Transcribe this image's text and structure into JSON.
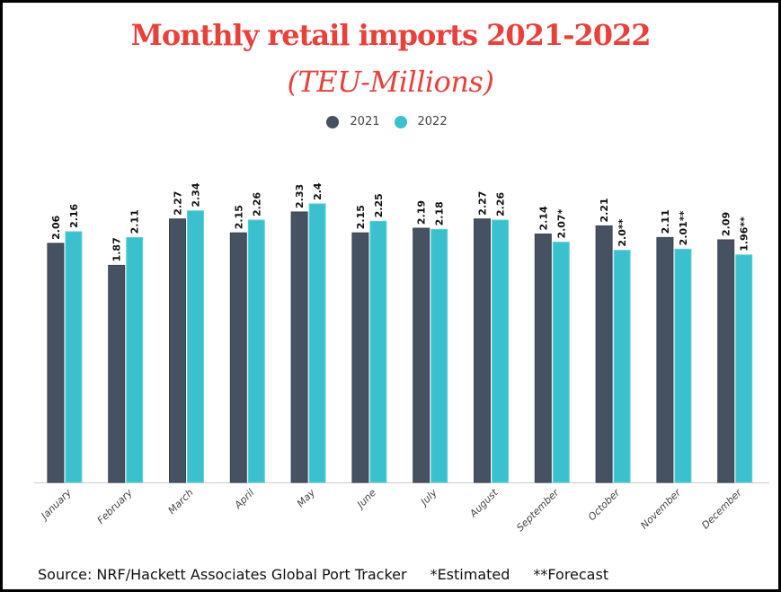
{
  "chart_data": {
    "type": "bar",
    "title": "Monthly retail imports 2021-2022",
    "subtitle": "(TEU-Millions)",
    "categories": [
      "January",
      "February",
      "March",
      "April",
      "May",
      "June",
      "July",
      "August",
      "September",
      "October",
      "November",
      "December"
    ],
    "series": [
      {
        "name": "2021",
        "color": "#465162",
        "values": [
          2.06,
          1.87,
          2.27,
          2.15,
          2.33,
          2.15,
          2.19,
          2.27,
          2.14,
          2.21,
          2.11,
          2.09
        ],
        "labels": [
          "2.06",
          "1.87",
          "2.27",
          "2.15",
          "2.33",
          "2.15",
          "2.19",
          "2.27",
          "2.14",
          "2.21",
          "2.11",
          "2.09"
        ]
      },
      {
        "name": "2022",
        "color": "#3bc1cd",
        "values": [
          2.16,
          2.11,
          2.34,
          2.26,
          2.4,
          2.25,
          2.18,
          2.26,
          2.07,
          2.0,
          2.01,
          1.96
        ],
        "labels": [
          "2.16",
          "2.11",
          "2.34",
          "2.26",
          "2.4",
          "2.25",
          "2.18",
          "2.26",
          "2.07*",
          "2.0**",
          "2.01**",
          "1.96**"
        ]
      }
    ],
    "ylim": [
      0,
      2.4
    ],
    "grid": false,
    "legend": "top-center"
  },
  "footer": {
    "source": "Source: NRF/Hackett Associates Global Port Tracker",
    "estimated": "*Estimated",
    "forecast": "**Forecast"
  }
}
